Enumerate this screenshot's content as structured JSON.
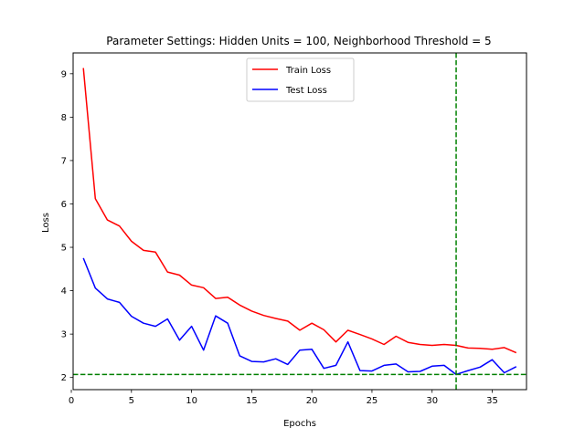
{
  "chart_data": {
    "type": "line",
    "title": "Parameter Settings: Hidden Units = 100, Neighborhood Threshold = 5",
    "xlabel": "Epochs",
    "ylabel": "Loss",
    "xlim": [
      0.15,
      37.85
    ],
    "ylim": [
      1.72,
      9.48
    ],
    "xticks": [
      0,
      5,
      10,
      15,
      20,
      25,
      30,
      35
    ],
    "yticks": [
      2,
      3,
      4,
      5,
      6,
      7,
      8,
      9
    ],
    "grid": false,
    "legend_position": "top-center",
    "x": [
      1,
      2,
      3,
      4,
      5,
      6,
      7,
      8,
      9,
      10,
      11,
      12,
      13,
      14,
      15,
      16,
      17,
      18,
      19,
      20,
      21,
      22,
      23,
      24,
      25,
      26,
      27,
      28,
      29,
      30,
      31,
      32,
      33,
      34,
      35,
      36,
      37
    ],
    "series": [
      {
        "name": "Train Loss",
        "color": "#ff0000",
        "values": [
          9.13,
          6.12,
          5.63,
          5.49,
          5.14,
          4.93,
          4.89,
          4.43,
          4.36,
          4.13,
          4.07,
          3.82,
          3.85,
          3.67,
          3.53,
          3.43,
          3.36,
          3.3,
          3.09,
          3.25,
          3.1,
          2.82,
          3.09,
          2.99,
          2.89,
          2.76,
          2.95,
          2.81,
          2.76,
          2.74,
          2.76,
          2.74,
          2.68,
          2.67,
          2.65,
          2.69,
          2.57
        ]
      },
      {
        "name": "Test Loss",
        "color": "#0000ff",
        "values": [
          4.75,
          4.06,
          3.81,
          3.73,
          3.41,
          3.25,
          3.18,
          3.35,
          2.86,
          3.18,
          2.63,
          3.42,
          3.25,
          2.5,
          2.37,
          2.36,
          2.43,
          2.3,
          2.63,
          2.65,
          2.21,
          2.28,
          2.82,
          2.16,
          2.15,
          2.28,
          2.31,
          2.13,
          2.14,
          2.26,
          2.28,
          2.07,
          2.16,
          2.24,
          2.41,
          2.11,
          2.25
        ]
      }
    ],
    "reference_lines": [
      {
        "orientation": "vertical",
        "x": 32,
        "color": "#008000",
        "style": "dashed"
      },
      {
        "orientation": "horizontal",
        "y": 2.07,
        "color": "#008000",
        "style": "dashed"
      }
    ]
  }
}
